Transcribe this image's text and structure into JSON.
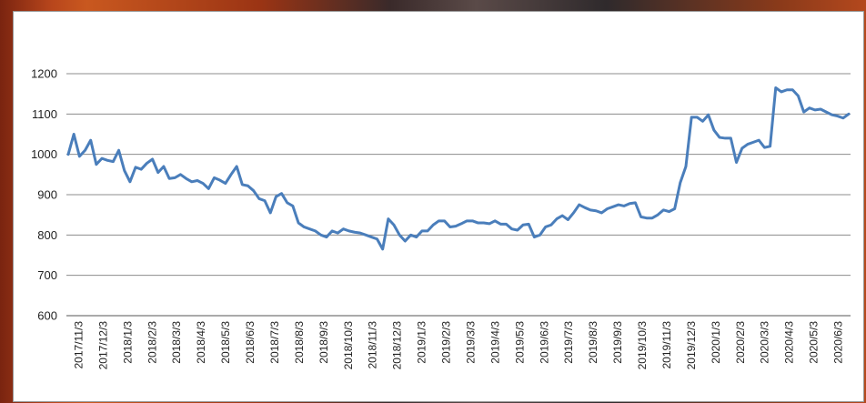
{
  "chart_data": {
    "type": "line",
    "title": "",
    "xlabel": "",
    "ylabel": "",
    "ylim": [
      600,
      1200
    ],
    "yticks": [
      600,
      700,
      800,
      900,
      1000,
      1100,
      1200
    ],
    "grid": "horizontal",
    "legend": "none",
    "line_color": "#4a7ebb",
    "x_tick_labels": [
      "2017/11/3",
      "2017/12/3",
      "2018/1/3",
      "2018/2/3",
      "2018/3/3",
      "2018/4/3",
      "2018/5/3",
      "2018/6/3",
      "2018/7/3",
      "2018/8/3",
      "2018/9/3",
      "2018/10/3",
      "2018/11/3",
      "2018/12/3",
      "2019/1/3",
      "2019/2/3",
      "2019/3/3",
      "2019/4/3",
      "2019/5/3",
      "2019/6/3",
      "2019/7/3",
      "2019/8/3",
      "2019/9/3",
      "2019/10/3",
      "2019/11/3",
      "2019/12/3",
      "2020/1/3",
      "2020/2/3",
      "2020/3/3",
      "2020/4/3",
      "2020/5/3",
      "2020/6/3"
    ],
    "series": [
      {
        "values": [
          1000,
          1050,
          995,
          1010,
          1035,
          975,
          990,
          985,
          982,
          1010,
          960,
          932,
          968,
          963,
          978,
          988,
          955,
          970,
          940,
          942,
          950,
          940,
          932,
          935,
          928,
          915,
          942,
          936,
          928,
          950,
          970,
          925,
          922,
          910,
          890,
          885,
          855,
          895,
          903,
          880,
          872,
          830,
          820,
          815,
          810,
          800,
          795,
          810,
          805,
          815,
          810,
          807,
          805,
          800,
          795,
          790,
          765,
          840,
          825,
          800,
          785,
          800,
          795,
          810,
          810,
          825,
          835,
          835,
          820,
          822,
          828,
          835,
          835,
          830,
          830,
          828,
          835,
          827,
          827,
          815,
          812,
          825,
          827,
          795,
          800,
          820,
          825,
          840,
          848,
          838,
          855,
          875,
          868,
          862,
          860,
          855,
          865,
          870,
          875,
          872,
          878,
          880,
          845,
          842,
          842,
          850,
          862,
          858,
          865,
          930,
          970,
          1092,
          1092,
          1082,
          1098,
          1060,
          1042,
          1040,
          1040,
          980,
          1015,
          1025,
          1030,
          1035,
          1017,
          1020,
          1165,
          1155,
          1160,
          1160,
          1145,
          1105,
          1115,
          1110,
          1112,
          1105,
          1098,
          1095,
          1090,
          1100
        ]
      }
    ]
  }
}
